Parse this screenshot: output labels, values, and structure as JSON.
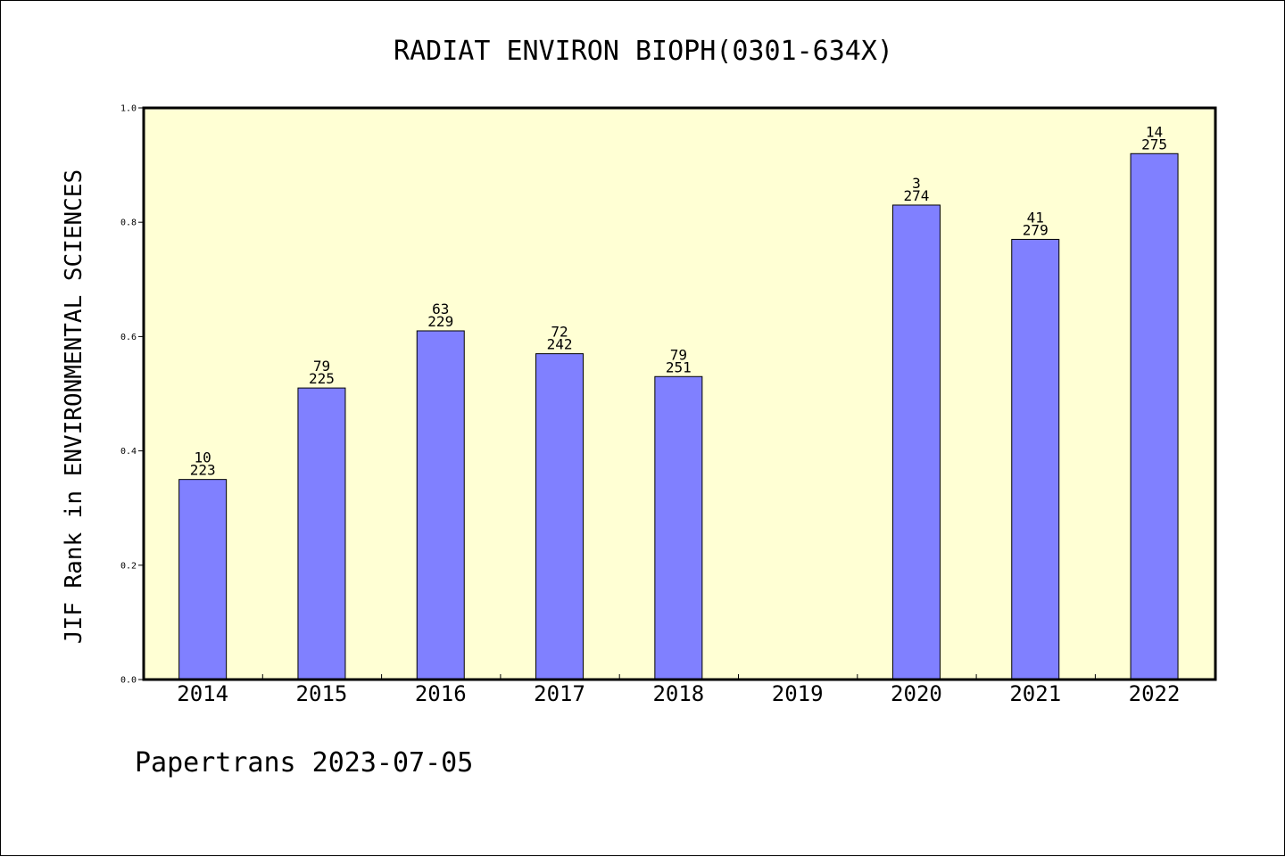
{
  "chart_data": {
    "type": "bar",
    "title": "RADIAT ENVIRON BIOPH(0301-634X)",
    "xlabel": "",
    "ylabel": "JIF Rank in ENVIRONMENTAL SCIENCES",
    "ylim": [
      0,
      1.0
    ],
    "yticks": [
      "0.0",
      "0.2",
      "0.4",
      "0.6",
      "0.8",
      "1.0"
    ],
    "categories": [
      "2014",
      "2015",
      "2016",
      "2017",
      "2018",
      "2019",
      "2020",
      "2021",
      "2022"
    ],
    "values": [
      0.35,
      0.51,
      0.61,
      0.57,
      0.53,
      null,
      0.83,
      0.77,
      0.92
    ],
    "rank_labels": [
      "10",
      "79",
      "63",
      "72",
      "79",
      "",
      "3",
      "41",
      "14"
    ],
    "total_labels": [
      "223",
      "225",
      "229",
      "242",
      "251",
      "",
      "274",
      "279",
      "275"
    ],
    "grid": false,
    "colors": {
      "bar": "#8080ff",
      "plot_background": "#ffffd4",
      "axis": "#000000"
    }
  },
  "footer": "Papertrans 2023-07-05"
}
